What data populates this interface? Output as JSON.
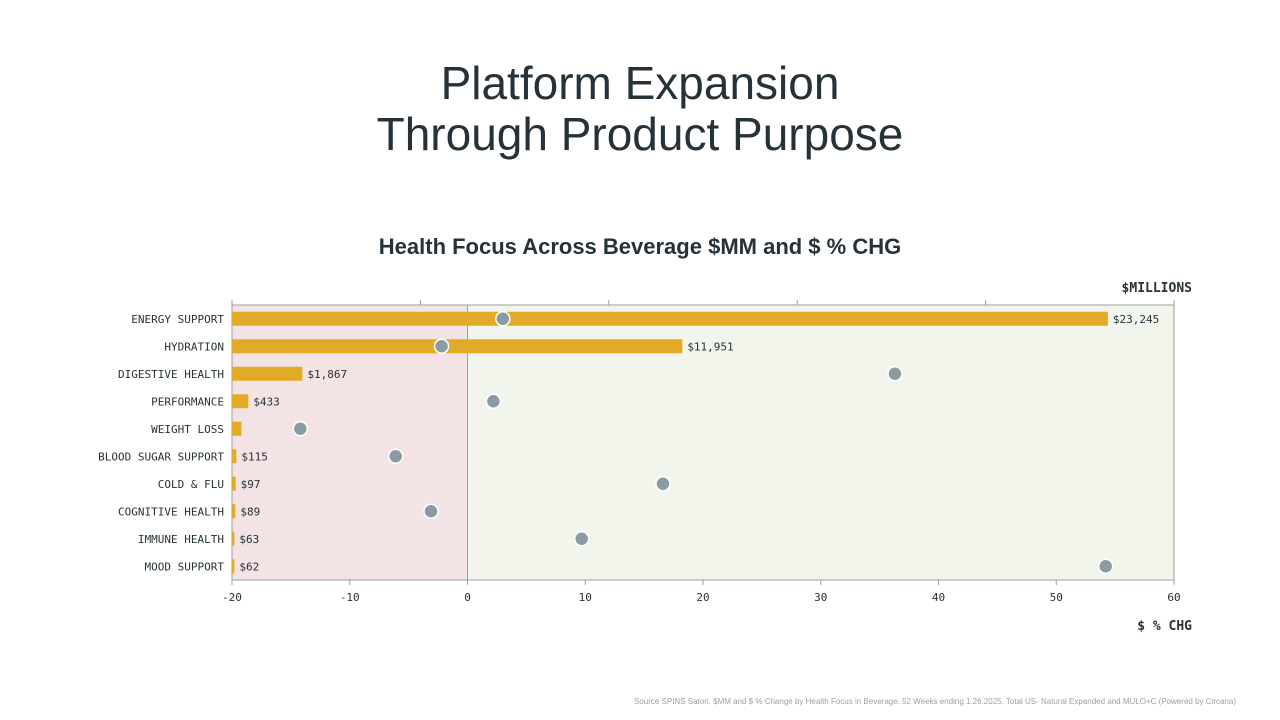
{
  "header": {
    "title_line1": "Platform Expansion",
    "title_line2": "Through Product Purpose"
  },
  "source_note": "Source SPINS Satori. $MM and $ % Change by Health Focus in Beverage. 52 Weeks ending 1.26.2025. Total US- Natural Expanded and MULO+C (Powered by Circana)",
  "colors": {
    "bar": "#e2ab27",
    "dot": "#8a9ba3",
    "negative_bg": "#f4e3e5",
    "positive_bg": "#f2f5ec",
    "axis": "#9e9e9e"
  },
  "chart_data": {
    "type": "bar",
    "title": "Health Focus Across Beverage $MM and $ % CHG",
    "top_axis_label": "$MILLIONS",
    "bottom_axis_label": "$ % CHG",
    "categories": [
      "ENERGY SUPPORT",
      "HYDRATION",
      "DIGESTIVE HEALTH",
      "PERFORMANCE",
      "WEIGHT LOSS",
      "BLOOD SUGAR SUPPORT",
      "COLD & FLU",
      "COGNITIVE HEALTH",
      "IMMUNE HEALTH",
      "MOOD SUPPORT"
    ],
    "series": [
      {
        "name": "$MILLIONS",
        "type": "bar",
        "values": [
          23245,
          11951,
          1867,
          433,
          250,
          115,
          97,
          89,
          63,
          62
        ],
        "labels": [
          "$23,245",
          "$11,951",
          "$1,867",
          "$433",
          "",
          "$115",
          "$97",
          "$89",
          "$63",
          "$62"
        ]
      },
      {
        "name": "$ % CHG",
        "type": "scatter",
        "values": [
          3.0,
          -2.2,
          36.3,
          2.2,
          -14.2,
          -6.1,
          16.6,
          -3.1,
          9.7,
          54.2
        ]
      }
    ],
    "top_axis_range": [
      0,
      25000
    ],
    "top_axis_ticks": [
      0,
      5000,
      10000,
      15000,
      20000,
      25000
    ],
    "xlim": [
      -20,
      60
    ],
    "xticks": [
      "-20",
      "-10",
      "0",
      "10",
      "20",
      "30",
      "40",
      "50",
      "60"
    ],
    "grid": false
  }
}
